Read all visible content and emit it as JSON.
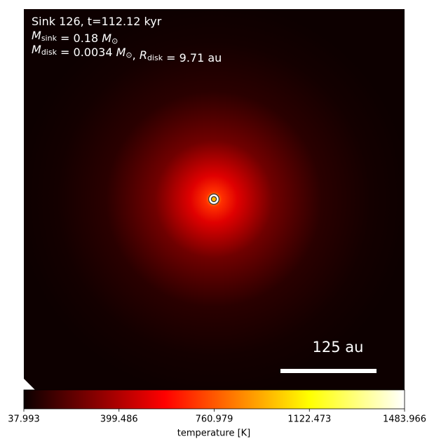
{
  "chart_data": {
    "type": "image",
    "annotations": [
      [
        {
          "t": "Sink 126, t=112.12 kyr"
        }
      ],
      [
        {
          "t": "M",
          "i": true
        },
        {
          "sub": "sink"
        },
        {
          "t": " = 0.18 "
        },
        {
          "t": "M",
          "i": true
        },
        {
          "sub": "⊙"
        }
      ],
      [
        {
          "t": "M",
          "i": true
        },
        {
          "sub": "disk"
        },
        {
          "t": " = 0.0034 "
        },
        {
          "t": "M",
          "i": true
        },
        {
          "sub": "⊙"
        },
        {
          "t": ", "
        },
        {
          "t": "R",
          "i": true
        },
        {
          "sub": "disk"
        },
        {
          "t": " = 9.71 au"
        }
      ]
    ],
    "scale_bar_label": "125 au",
    "colorbar": {
      "label": "temperature [K]",
      "xlim": [
        37.993,
        1483.966
      ],
      "xticks": [
        37.993,
        399.486,
        760.979,
        1122.473,
        1483.966
      ]
    }
  }
}
